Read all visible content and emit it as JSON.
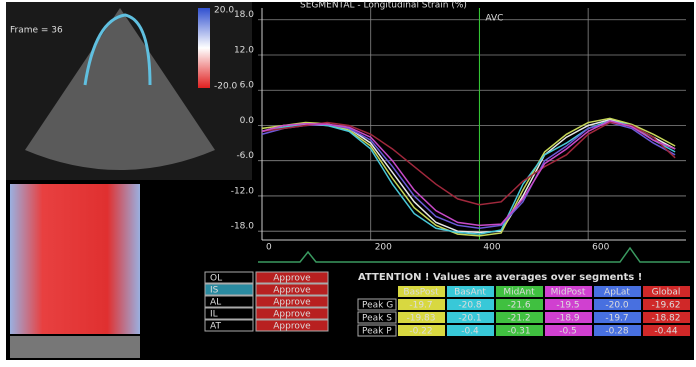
{
  "frame_label": "Frame = 36",
  "color_scale": {
    "top": "20.0",
    "bottom": "-20.0"
  },
  "header": "SEGMENTAL - Longitudinal Strain (%)",
  "chart_data": {
    "type": "line",
    "x": [
      0,
      40,
      80,
      120,
      160,
      200,
      240,
      280,
      320,
      360,
      400,
      440,
      480,
      520,
      560,
      600,
      640,
      680,
      720,
      760
    ],
    "series": [
      {
        "color": "#e8e8e8",
        "values": [
          -1,
          0,
          0.2,
          0,
          -0.5,
          -3,
          -8,
          -13,
          -16.5,
          -18,
          -18.2,
          -18,
          -12,
          -5,
          -2,
          0,
          1,
          0,
          -2,
          -4
        ]
      },
      {
        "color": "#c8d85a",
        "values": [
          -0.5,
          0,
          0.5,
          0.3,
          -0.8,
          -3.5,
          -9,
          -14,
          -17,
          -18.5,
          -18.8,
          -18.3,
          -11,
          -4.5,
          -1.5,
          0.5,
          1.2,
          0.2,
          -1.5,
          -3.5
        ]
      },
      {
        "color": "#48c8d8",
        "values": [
          -1,
          -0.3,
          0.3,
          0,
          -1,
          -4,
          -10,
          -15,
          -17.5,
          -18.2,
          -18.5,
          -17.8,
          -10,
          -5,
          -3,
          -0.5,
          0.8,
          0,
          -2.5,
          -4.5
        ]
      },
      {
        "color": "#6a5ad8",
        "values": [
          -1.5,
          -0.5,
          0,
          0.2,
          -0.5,
          -2.5,
          -7,
          -12,
          -15.5,
          -17,
          -17.5,
          -17,
          -13,
          -6,
          -3.5,
          -0.5,
          0.5,
          -0.5,
          -3,
          -5
        ]
      },
      {
        "color": "#a0283c",
        "values": [
          -1,
          -0.5,
          0,
          0.5,
          0,
          -1.5,
          -4,
          -7,
          -10,
          -12.5,
          -13.5,
          -13,
          -9.5,
          -7,
          -5,
          -1.5,
          0.5,
          0,
          -2,
          -5.5
        ]
      },
      {
        "color": "#c84ac8",
        "values": [
          -1,
          0,
          0.3,
          0.2,
          -0.3,
          -2,
          -6,
          -11,
          -14.5,
          -16.5,
          -17,
          -16.8,
          -12.5,
          -6.5,
          -4,
          -1,
          0.8,
          -0.2,
          -2.5,
          -4
        ]
      }
    ],
    "xlim": [
      0,
      780
    ],
    "ylim": [
      -19.5,
      20
    ],
    "xticks": [
      0,
      200,
      400,
      600
    ],
    "yticks": [
      {
        "value": 18,
        "label": "18.0"
      },
      {
        "value": 12,
        "label": "12.0"
      },
      {
        "value": 6,
        "label": "6.0"
      },
      {
        "value": 0,
        "label": "0.0"
      },
      {
        "value": -6,
        "label": "-6.0"
      },
      {
        "value": -12,
        "label": "-12.0"
      },
      {
        "value": -18,
        "label": "-18.0"
      }
    ],
    "grid": true,
    "annotation": {
      "text": "AVC",
      "x": 400
    }
  },
  "segments": {
    "labels": [
      "OL",
      "IS",
      "AL",
      "IL",
      "AT"
    ],
    "button": "Approve"
  },
  "table": {
    "title": "ATTENTION ! Values are averages over segments !",
    "columns": [
      "BasPost",
      "BasAnt",
      "MidAnt",
      "MidPost",
      "ApLat",
      "Global"
    ],
    "colors": [
      "#d8d840",
      "#38c8d8",
      "#40c040",
      "#d040d0",
      "#4870e0",
      "#d02828"
    ],
    "rows": [
      [
        "Peak G",
        "-19.7",
        "-20.8",
        "-21.6",
        "-19.5",
        "-20.0",
        "-19.62"
      ],
      [
        "Peak S",
        "-19.83",
        "-20.1",
        "-21.2",
        "-18.9",
        "-19.7",
        "-18.82"
      ],
      [
        "Peak P",
        "-0.22",
        "-0.4",
        "-0.31",
        "-0.5",
        "-0.28",
        "-0.44"
      ]
    ]
  }
}
